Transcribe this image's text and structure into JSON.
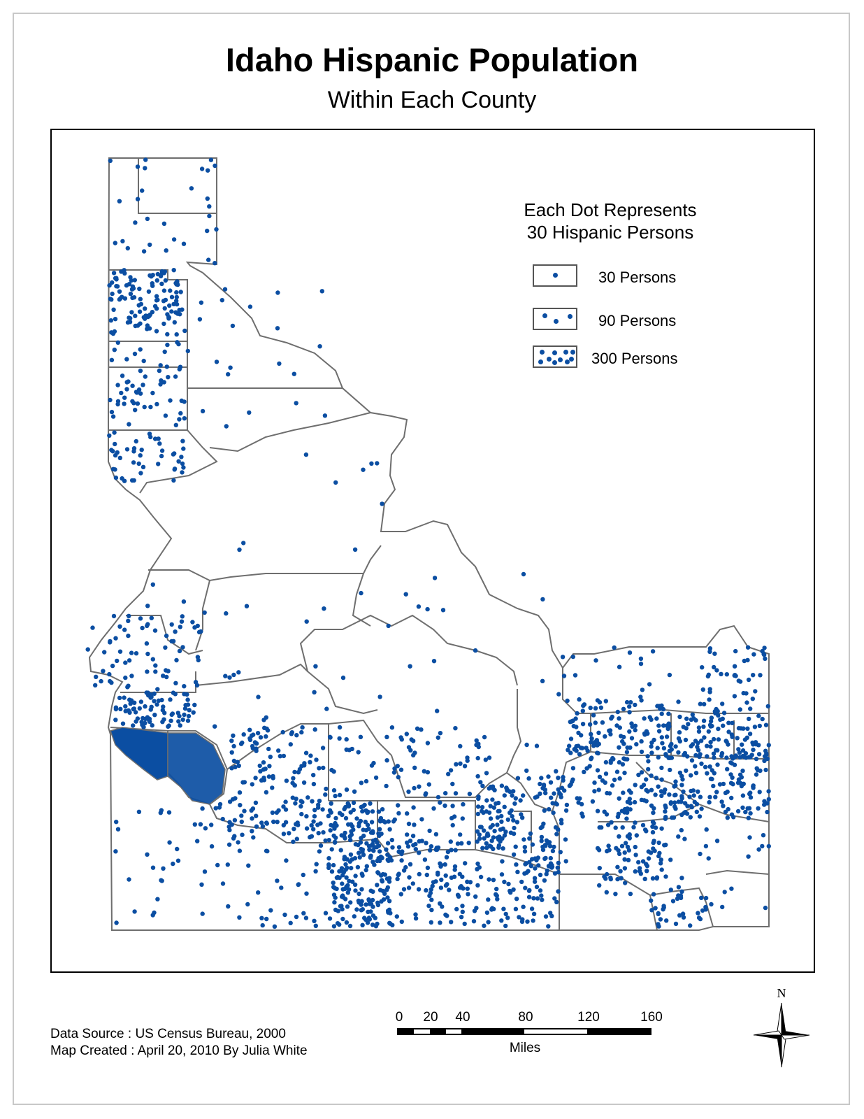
{
  "title": "Idaho Hispanic Population",
  "subtitle": "Within Each County",
  "legend": {
    "title_line1": "Each Dot Represents",
    "title_line2": "30 Hispanic Persons",
    "items": [
      {
        "label": "30 Persons",
        "persons": 30,
        "dots": 1
      },
      {
        "label": "90 Persons",
        "persons": 90,
        "dots": 3
      },
      {
        "label": "300 Persons",
        "persons": 300,
        "dots": 10
      }
    ]
  },
  "footer": {
    "data_source": "Data Source : US Census Bureau, 2000",
    "map_created": "Map Created : April 20, 2010 By Julia White"
  },
  "scale_bar": {
    "ticks": [
      "0",
      "20",
      "40",
      "80",
      "120",
      "160"
    ],
    "unit": "Miles"
  },
  "compass": {
    "north_label": "N"
  },
  "colors": {
    "dot": "#0b4ea2",
    "county_border": "#6e6e6e",
    "frame": "#000000"
  }
}
